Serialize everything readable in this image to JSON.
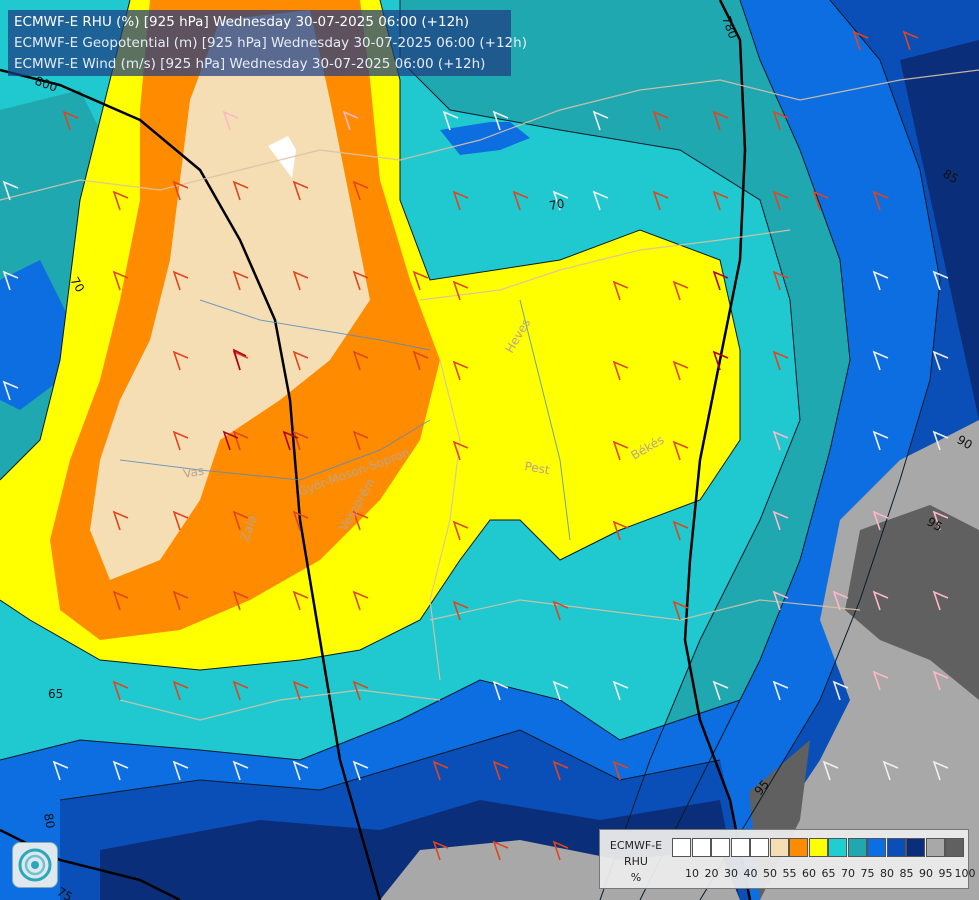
{
  "header": {
    "line1": "ECMWF-E RHU (%) [925 hPa] Wednesday 30-07-2025 06:00 (+12h)",
    "line2": "ECMWF-E Geopotential (m) [925 hPa] Wednesday 30-07-2025 06:00 (+12h)",
    "line3": "ECMWF-E Wind (m/s) [925 hPa] Wednesday 30-07-2025 06:00 (+12h)"
  },
  "legend": {
    "title_lines": [
      "ECMWF-E",
      "RHU",
      "%"
    ],
    "colors": [
      "#ffffff",
      "#ffffff",
      "#ffffff",
      "#ffffff",
      "#ffffff",
      "#f5deb3",
      "#ff8c00",
      "#ffff00",
      "#1fcfd0",
      "#20a8b0",
      "#0c6ee0",
      "#0a4fb8",
      "#0a2e7a",
      "#a8a8a8",
      "#606060"
    ],
    "ticks": [
      "10",
      "20",
      "30",
      "40",
      "50",
      "55",
      "60",
      "65",
      "70",
      "75",
      "80",
      "85",
      "90",
      "95",
      "100"
    ]
  },
  "contour_labels": {
    "geo_800": "800",
    "geo_780": "780",
    "rh_70a": "70",
    "rh_70b": "70",
    "rh_65": "65",
    "rh_85": "85",
    "rh_90": "90",
    "rh_95a": "95",
    "rh_95b": "95",
    "rh_80": "80",
    "rh_75": "75"
  },
  "places": {
    "heves": "Heves",
    "pest": "Pest",
    "bekes": "Békés",
    "vas": "Vas",
    "zala": "Zala",
    "gyor": "Győr-Moson-Sopron",
    "veszprem": "Veszprém"
  }
}
